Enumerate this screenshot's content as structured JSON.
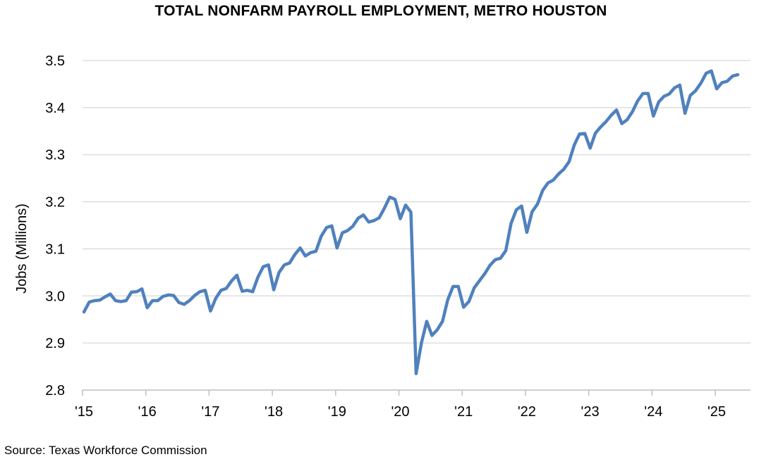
{
  "chart_data": {
    "type": "line",
    "title": "TOTAL NONFARM PAYROLL EMPLOYMENT, METRO HOUSTON",
    "ylabel": "Jobs (Millions)",
    "xlabel": "",
    "source": "Source: Texas Workforce Commission",
    "ylim": [
      2.8,
      3.5
    ],
    "yticks": [
      "2.8",
      "2.9",
      "3.0",
      "3.1",
      "3.2",
      "3.3",
      "3.4",
      "3.5"
    ],
    "xticks": [
      "'15",
      "'16",
      "'17",
      "'18",
      "'19",
      "'20",
      "'21",
      "'22",
      "'23",
      "'24",
      "'25"
    ],
    "x_start_year": 2015,
    "grid": true,
    "series": [
      {
        "color": "#4f81bd",
        "values": [
          2.966,
          2.987,
          2.99,
          2.991,
          2.998,
          3.004,
          2.99,
          2.988,
          2.99,
          3.008,
          3.009,
          3.015,
          2.975,
          2.99,
          2.99,
          2.999,
          3.002,
          3.001,
          2.986,
          2.982,
          2.99,
          3.001,
          3.009,
          3.012,
          2.968,
          2.995,
          3.012,
          3.016,
          3.032,
          3.044,
          3.01,
          3.012,
          3.009,
          3.04,
          3.062,
          3.066,
          3.013,
          3.05,
          3.066,
          3.07,
          3.088,
          3.102,
          3.085,
          3.092,
          3.095,
          3.127,
          3.145,
          3.149,
          3.102,
          3.134,
          3.139,
          3.148,
          3.165,
          3.172,
          3.157,
          3.16,
          3.166,
          3.187,
          3.21,
          3.205,
          3.164,
          3.193,
          3.178,
          2.835,
          2.9,
          2.946,
          2.916,
          2.928,
          2.946,
          2.992,
          3.02,
          3.02,
          2.976,
          2.988,
          3.017,
          3.032,
          3.047,
          3.065,
          3.077,
          3.08,
          3.096,
          3.154,
          3.183,
          3.191,
          3.135,
          3.179,
          3.195,
          3.224,
          3.24,
          3.246,
          3.259,
          3.269,
          3.285,
          3.321,
          3.344,
          3.345,
          3.314,
          3.346,
          3.359,
          3.37,
          3.384,
          3.395,
          3.366,
          3.374,
          3.391,
          3.414,
          3.43,
          3.43,
          3.382,
          3.412,
          3.424,
          3.429,
          3.442,
          3.448,
          3.388,
          3.426,
          3.436,
          3.452,
          3.473,
          3.478,
          3.44,
          3.453,
          3.456,
          3.467,
          3.47
        ]
      }
    ]
  }
}
